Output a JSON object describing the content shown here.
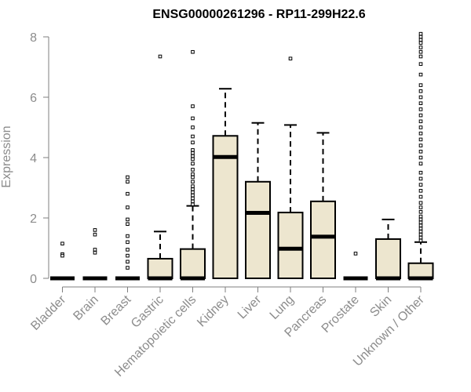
{
  "chart_data": {
    "type": "boxplot",
    "title": "ENSG00000261296 - RP11-299H22.6",
    "xlabel": "",
    "ylabel": "Expression",
    "ylim": [
      0,
      8
    ],
    "yticks": [
      0,
      2,
      4,
      6,
      8
    ],
    "grid": false,
    "legend": "none",
    "colors": {
      "box_fill": "#ede6cf",
      "box_stroke": "#000000",
      "axis": "#7f7f7f",
      "axis_text": "#8c8c8c",
      "title": "#000000"
    },
    "categories": [
      "Bladder",
      "Brain",
      "Breast",
      "Gastric",
      "Hematopoietic cells",
      "Kidney",
      "Liver",
      "Lung",
      "Pancreas",
      "Prostate",
      "Skin",
      "Unknown / Other"
    ],
    "boxes": [
      {
        "category": "Bladder",
        "q1": 0,
        "median": 0,
        "q3": 0,
        "whisker_low": 0,
        "whisker_high": 0,
        "outliers": [
          1.15,
          0.8,
          0.75
        ]
      },
      {
        "category": "Brain",
        "q1": 0,
        "median": 0,
        "q3": 0,
        "whisker_low": 0,
        "whisker_high": 0,
        "outliers": [
          1.6,
          1.45,
          0.95,
          0.85
        ]
      },
      {
        "category": "Breast",
        "q1": 0,
        "median": 0,
        "q3": 0,
        "whisker_low": 0,
        "whisker_high": 0,
        "outliers": [
          3.35,
          3.2,
          2.8,
          2.35,
          1.95,
          1.8,
          1.4,
          1.2,
          0.95,
          0.75,
          0.55,
          0.35
        ]
      },
      {
        "category": "Gastric",
        "q1": 0,
        "median": 0,
        "q3": 0.65,
        "whisker_low": 0,
        "whisker_high": 1.55,
        "outliers": [
          7.35
        ]
      },
      {
        "category": "Hematopoietic cells",
        "q1": 0,
        "median": 0,
        "q3": 0.97,
        "whisker_low": 0,
        "whisker_high": 2.4,
        "outliers": [
          7.5,
          5.7,
          5.3,
          5.0,
          4.7,
          4.5,
          4.25,
          4.15,
          4.05,
          3.95,
          3.8,
          3.6,
          3.45,
          3.35,
          3.2,
          3.05,
          2.95,
          2.85,
          2.75,
          2.65,
          2.55,
          2.45
        ]
      },
      {
        "category": "Kidney",
        "q1": 0,
        "median": 4.02,
        "q3": 4.72,
        "whisker_low": 0,
        "whisker_high": 6.28,
        "outliers": []
      },
      {
        "category": "Liver",
        "q1": 0,
        "median": 2.17,
        "q3": 3.2,
        "whisker_low": 0,
        "whisker_high": 5.15,
        "outliers": []
      },
      {
        "category": "Lung",
        "q1": 0,
        "median": 0.98,
        "q3": 2.18,
        "whisker_low": 0,
        "whisker_high": 5.08,
        "outliers": [
          7.28
        ]
      },
      {
        "category": "Pancreas",
        "q1": 0,
        "median": 1.38,
        "q3": 2.55,
        "whisker_low": 0,
        "whisker_high": 4.82,
        "outliers": []
      },
      {
        "category": "Prostate",
        "q1": 0,
        "median": 0,
        "q3": 0,
        "whisker_low": 0,
        "whisker_high": 0,
        "outliers": [
          0.82
        ]
      },
      {
        "category": "Skin",
        "q1": 0,
        "median": 0,
        "q3": 1.3,
        "whisker_low": 0,
        "whisker_high": 1.95,
        "outliers": []
      },
      {
        "category": "Unknown / Other",
        "q1": 0,
        "median": 0,
        "q3": 0.5,
        "whisker_low": 0,
        "whisker_high": 1.2,
        "outliers": [
          8.1,
          8.0,
          7.9,
          7.8,
          7.65,
          7.5,
          7.35,
          7.1,
          6.75,
          6.4,
          6.2,
          6.0,
          5.8,
          5.6,
          5.4,
          5.2,
          5.0,
          4.8,
          4.6,
          4.4,
          4.2,
          4.0,
          3.8,
          3.5,
          3.3,
          3.1,
          2.9,
          2.7,
          2.5,
          2.35,
          2.2,
          2.05,
          1.95,
          1.85,
          1.75,
          1.65,
          1.55,
          1.45,
          1.35,
          1.25
        ]
      }
    ]
  }
}
